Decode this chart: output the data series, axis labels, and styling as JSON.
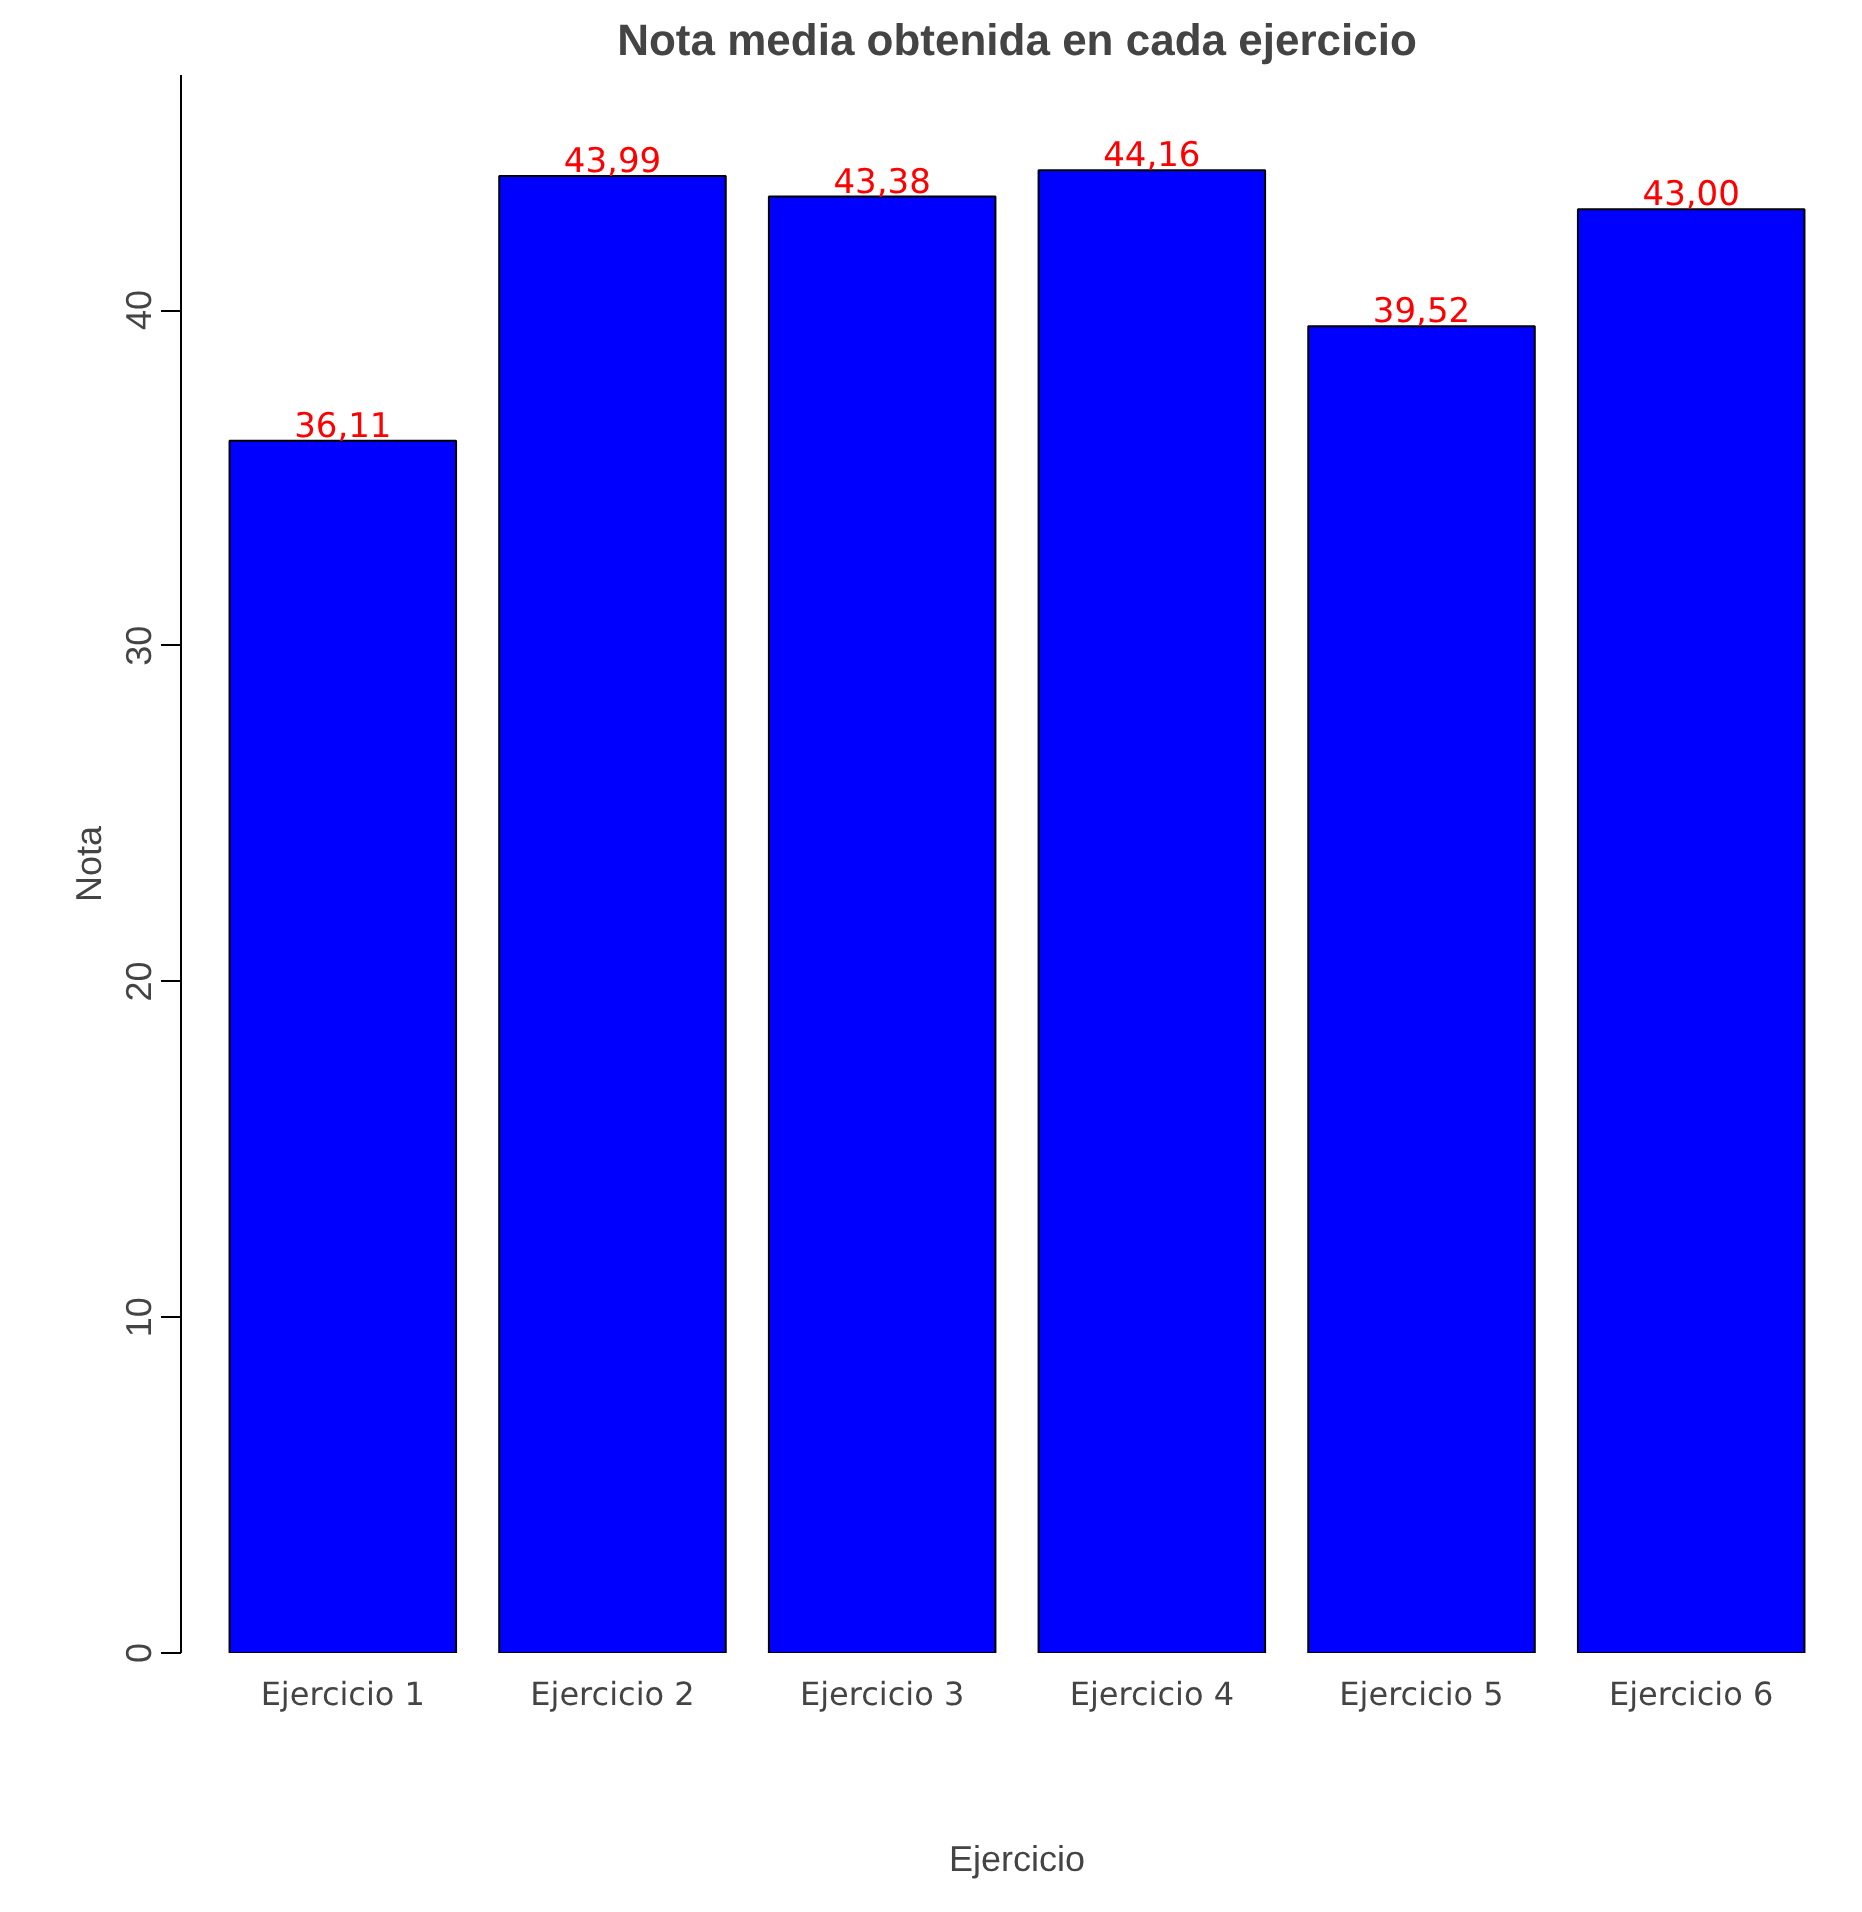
{
  "chart_data": {
    "type": "bar",
    "title": "Nota media obtenida en cada ejercicio",
    "xlabel": "Ejercicio",
    "ylabel": "Nota",
    "categories": [
      "Ejercicio 1",
      "Ejercicio 2",
      "Ejercicio 3",
      "Ejercicio 4",
      "Ejercicio 5",
      "Ejercicio 6"
    ],
    "values": [
      36.11,
      43.99,
      43.38,
      44.16,
      39.52,
      43.0
    ],
    "value_labels": [
      "36,11",
      "43,99",
      "43,38",
      "44,16",
      "39,52",
      "43,00"
    ],
    "color": "#0000ff",
    "ylim": [
      0,
      47
    ],
    "yticks": [
      0,
      10,
      20,
      30,
      40
    ],
    "grid": false
  }
}
